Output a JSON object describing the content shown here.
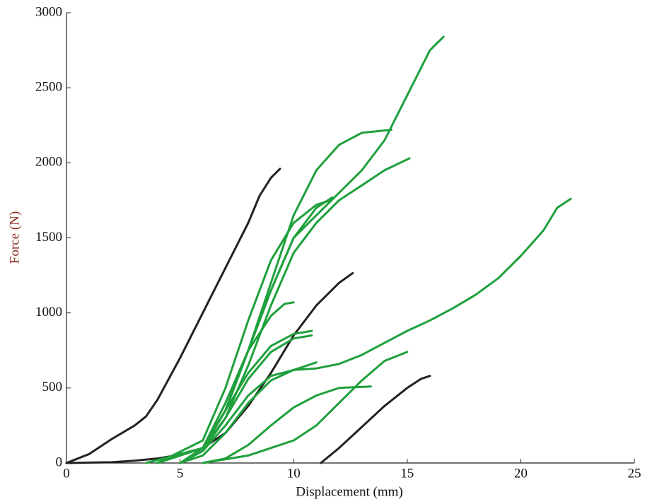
{
  "chart_data": {
    "type": "line",
    "xlabel": "Displacement (mm)",
    "ylabel": "Force (N)",
    "xlim": [
      0,
      25
    ],
    "xticks": [
      0,
      5,
      10,
      15,
      20,
      25
    ],
    "ylim": [
      0,
      3000
    ],
    "yticks": [
      0,
      500,
      1000,
      1500,
      2000,
      2500,
      3000
    ],
    "series": [
      {
        "color": "#222222",
        "x": [
          0,
          1,
          2,
          3,
          3.5,
          4,
          5,
          6,
          7,
          8,
          8.5,
          9,
          9.4
        ],
        "values": [
          0,
          60,
          160,
          250,
          310,
          420,
          700,
          1000,
          1300,
          1600,
          1780,
          1900,
          1960
        ]
      },
      {
        "color": "#222222",
        "x": [
          0,
          2,
          3,
          4,
          5,
          6,
          7,
          8,
          9,
          10,
          11,
          12,
          12.6
        ],
        "values": [
          0,
          5,
          15,
          30,
          55,
          100,
          200,
          380,
          600,
          850,
          1050,
          1200,
          1265
        ]
      },
      {
        "color": "#222222",
        "x": [
          11.2,
          12,
          13,
          14,
          15,
          15.6,
          16
        ],
        "values": [
          0,
          100,
          240,
          380,
          500,
          560,
          580
        ]
      },
      {
        "color": "#1fa03c",
        "x": [
          3.5,
          6,
          7,
          8,
          9,
          10,
          11,
          12,
          13,
          14.3
        ],
        "values": [
          0,
          100,
          350,
          750,
          1200,
          1650,
          1950,
          2120,
          2200,
          2220
        ]
      },
      {
        "color": "#1fa03c",
        "x": [
          4,
          6,
          7,
          8,
          9,
          10,
          11,
          12,
          13,
          14,
          15,
          16,
          16.6
        ],
        "values": [
          0,
          100,
          350,
          750,
          1150,
          1500,
          1650,
          1800,
          1950,
          2150,
          2450,
          2750,
          2840
        ]
      },
      {
        "color": "#1fa03c",
        "x": [
          4,
          6,
          7,
          8,
          9,
          10,
          11,
          12,
          13,
          14,
          15.1
        ],
        "values": [
          0,
          100,
          300,
          650,
          1050,
          1400,
          1600,
          1750,
          1850,
          1950,
          2030
        ]
      },
      {
        "color": "#1fa03c",
        "x": [
          4,
          6,
          7,
          8,
          9,
          10,
          11,
          11.7
        ],
        "values": [
          0,
          100,
          350,
          750,
          1150,
          1500,
          1700,
          1770
        ]
      },
      {
        "color": "#1fa03c",
        "x": [
          4,
          6,
          7,
          8,
          9,
          10,
          11,
          11.6
        ],
        "values": [
          0,
          150,
          500,
          950,
          1350,
          1600,
          1720,
          1750
        ]
      },
      {
        "color": "#1fa03c",
        "x": [
          4,
          6,
          7,
          8,
          9,
          9.6,
          10
        ],
        "values": [
          0,
          100,
          400,
          750,
          980,
          1060,
          1070
        ]
      },
      {
        "color": "#1fa03c",
        "x": [
          5,
          6,
          7,
          8,
          9,
          10,
          10.8
        ],
        "values": [
          0,
          100,
          350,
          600,
          780,
          860,
          880
        ]
      },
      {
        "color": "#1fa03c",
        "x": [
          5,
          6,
          7,
          8,
          9,
          10,
          10.8
        ],
        "values": [
          0,
          80,
          300,
          560,
          740,
          830,
          850
        ]
      },
      {
        "color": "#1fa03c",
        "x": [
          5,
          6,
          7,
          8,
          9,
          10,
          11,
          12,
          13,
          14,
          15,
          16,
          17,
          18,
          19,
          20,
          21,
          21.6,
          22.2
        ],
        "values": [
          0,
          80,
          250,
          450,
          580,
          620,
          630,
          660,
          720,
          800,
          880,
          950,
          1030,
          1120,
          1230,
          1380,
          1550,
          1700,
          1760
        ]
      },
      {
        "color": "#1fa03c",
        "x": [
          5,
          6,
          7,
          8,
          9,
          10,
          11
        ],
        "values": [
          0,
          50,
          200,
          400,
          550,
          620,
          670
        ]
      },
      {
        "color": "#1fa03c",
        "x": [
          6,
          8,
          10,
          11,
          12,
          13,
          14,
          15
        ],
        "values": [
          0,
          50,
          150,
          250,
          400,
          550,
          680,
          740
        ]
      },
      {
        "color": "#1fa03c",
        "x": [
          6,
          7,
          8,
          9,
          10,
          11,
          12,
          13.4
        ],
        "values": [
          0,
          30,
          120,
          250,
          370,
          450,
          500,
          510
        ]
      }
    ]
  }
}
